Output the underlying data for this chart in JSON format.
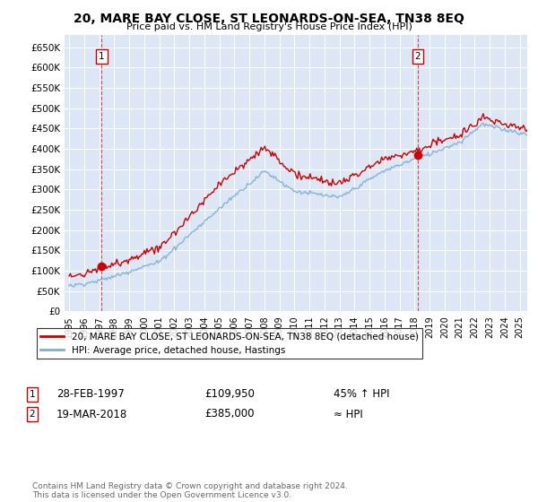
{
  "title": "20, MARE BAY CLOSE, ST LEONARDS-ON-SEA, TN38 8EQ",
  "subtitle": "Price paid vs. HM Land Registry's House Price Index (HPI)",
  "background_color": "#dce6f5",
  "plot_bg_color": "#dce6f5",
  "ylim": [
    0,
    680000
  ],
  "xlim_start": 1994.7,
  "xlim_end": 2025.5,
  "xtick_years": [
    1995,
    1996,
    1997,
    1998,
    1999,
    2000,
    2001,
    2002,
    2003,
    2004,
    2005,
    2006,
    2007,
    2008,
    2009,
    2010,
    2011,
    2012,
    2013,
    2014,
    2015,
    2016,
    2017,
    2018,
    2019,
    2020,
    2021,
    2022,
    2023,
    2024,
    2025
  ],
  "sale1_year": 1997.167,
  "sale1_price": 109950,
  "sale1_label": "1",
  "sale1_date": "28-FEB-1997",
  "sale1_price_str": "£109,950",
  "sale1_hpi_rel": "45% ↑ HPI",
  "sale2_year": 2018.208,
  "sale2_price": 385000,
  "sale2_label": "2",
  "sale2_date": "19-MAR-2018",
  "sale2_price_str": "£385,000",
  "sale2_hpi_rel": "≈ HPI",
  "red_line_color": "#cc0000",
  "blue_line_color": "#7bafd4",
  "marker_color": "#cc0000",
  "dashed_color": "#cc0000",
  "legend_label1": "20, MARE BAY CLOSE, ST LEONARDS-ON-SEA, TN38 8EQ (detached house)",
  "legend_label2": "HPI: Average price, detached house, Hastings",
  "footer": "Contains HM Land Registry data © Crown copyright and database right 2024.\nThis data is licensed under the Open Government Licence v3.0."
}
